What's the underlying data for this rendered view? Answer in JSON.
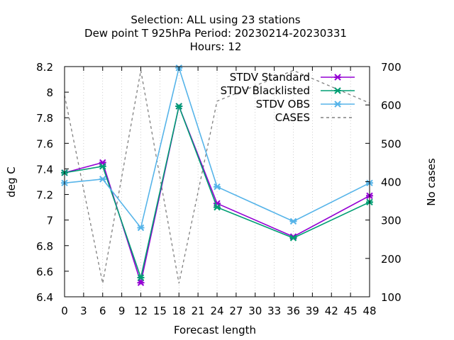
{
  "title_lines": [
    "Selection: ALL using    23 stations",
    "Dew point T 925hPa   Period: 20230214-20230331",
    "Hours:  12"
  ],
  "chart_data": {
    "type": "line",
    "xlabel": "Forecast length",
    "ylabel": "deg C",
    "y2label": "No cases",
    "xlim": [
      0,
      48
    ],
    "ylim": [
      6.4,
      8.2
    ],
    "y2lim": [
      100,
      700
    ],
    "xticks": [
      0,
      3,
      6,
      9,
      12,
      15,
      18,
      21,
      24,
      27,
      30,
      33,
      36,
      39,
      42,
      45,
      48
    ],
    "yticks": [
      "6.4",
      "6.6",
      "6.8",
      "7",
      "7.2",
      "7.4",
      "7.6",
      "7.8",
      "8",
      "8.2"
    ],
    "y2ticks": [
      100,
      200,
      300,
      400,
      500,
      600,
      700
    ],
    "grid": "x-only",
    "legend_position": "top-right",
    "x": [
      0,
      6,
      12,
      18,
      24,
      36,
      48
    ],
    "series": [
      {
        "name": "STDV Standard",
        "axis": "y",
        "values": [
          7.37,
          7.45,
          6.51,
          7.89,
          7.13,
          6.87,
          7.19
        ],
        "color": "#9400d3",
        "marker": "x",
        "dash": false
      },
      {
        "name": "STDV Blacklisted",
        "axis": "y",
        "values": [
          7.37,
          7.42,
          6.55,
          7.89,
          7.1,
          6.86,
          7.14
        ],
        "color": "#009e73",
        "marker": "x",
        "dash": false
      },
      {
        "name": "STDV OBS",
        "axis": "y",
        "values": [
          7.29,
          7.32,
          6.94,
          8.19,
          7.26,
          6.99,
          7.29
        ],
        "color": "#56b4e9",
        "marker": "x",
        "dash": false
      },
      {
        "name": "CASES",
        "axis": "y2",
        "values": [
          625,
          135,
          690,
          135,
          610,
          690,
          605
        ],
        "color": "#808080",
        "marker": "none",
        "dash": true
      }
    ]
  }
}
